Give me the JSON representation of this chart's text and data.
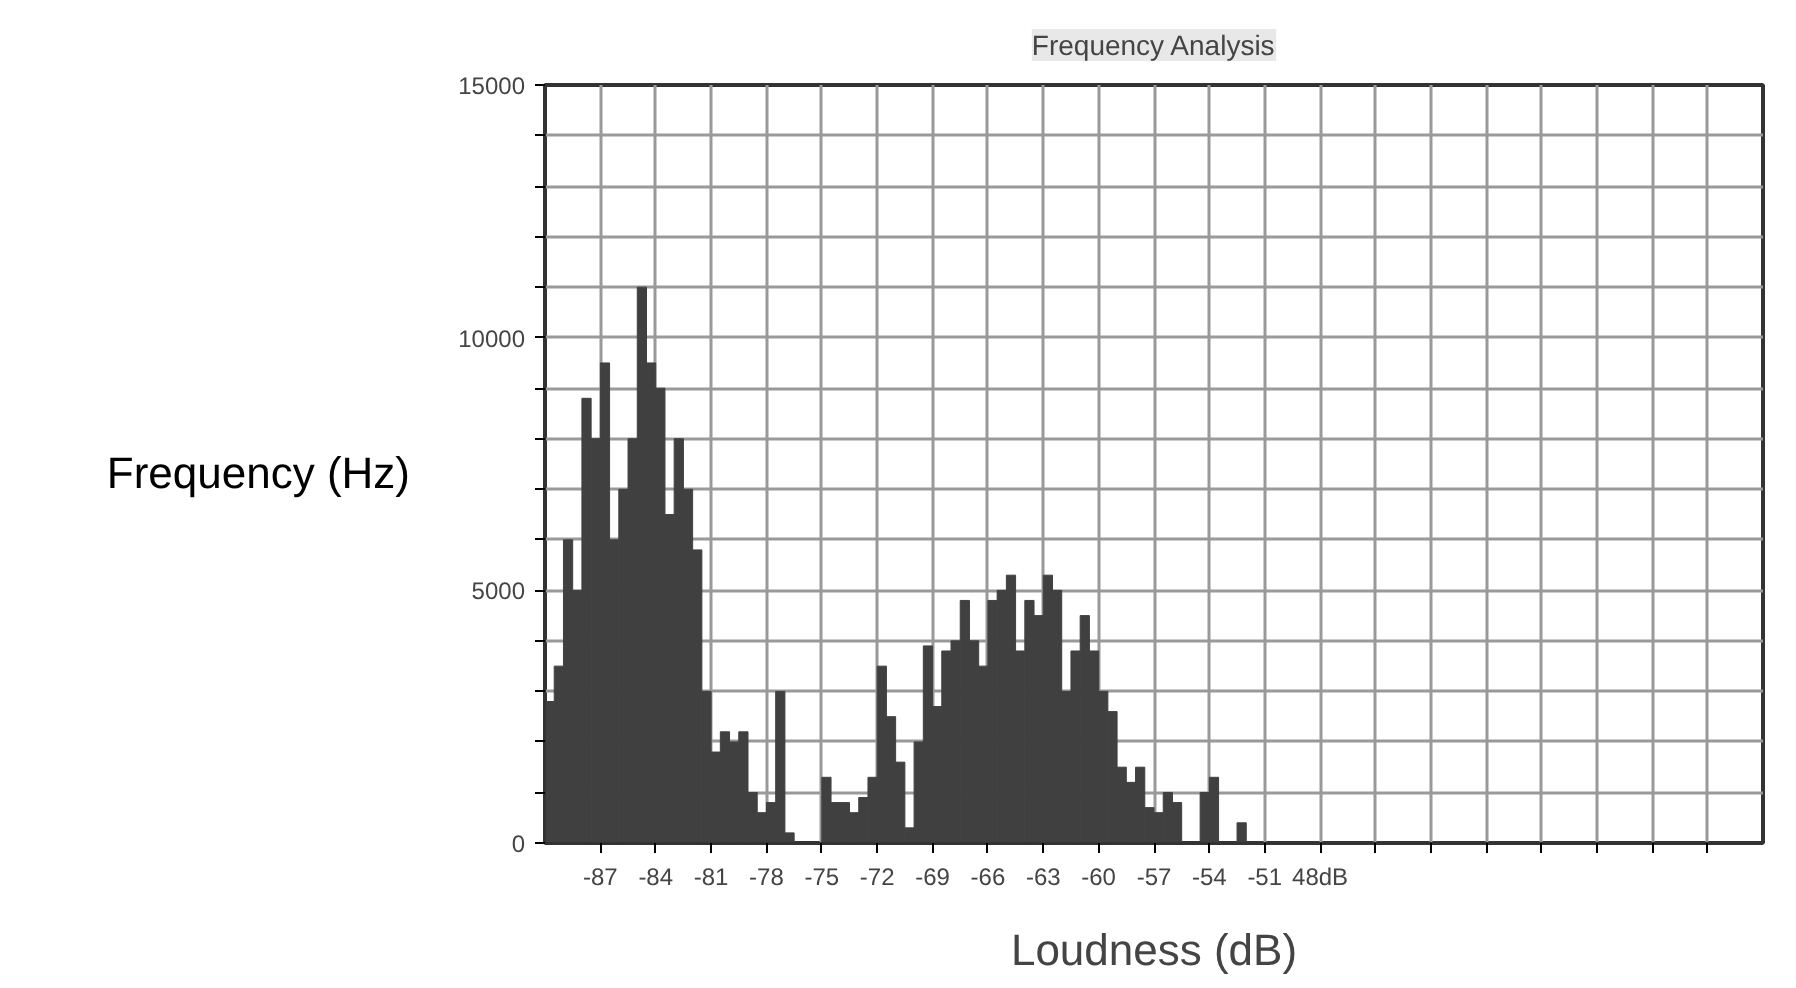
{
  "chart_data": {
    "type": "histogram",
    "title": "Frequency Analysis",
    "xlabel": "Loudness (dB)",
    "ylabel": "Frequency (Hz)",
    "bins": [
      -90,
      -89.5,
      -89,
      -88.5,
      -88,
      -87.5,
      -87,
      -86.5,
      -86,
      -85.5,
      -85,
      -84.5,
      -84,
      -83.5,
      -83,
      -82.5,
      -82,
      -81.5,
      -81,
      -80.5,
      -80,
      -79.5,
      -79,
      -78.5,
      -78,
      -77.5,
      -77,
      -76.5,
      -76,
      -75.5,
      -75,
      -74.5,
      -74,
      -73.5,
      -73,
      -72.5,
      -72,
      -71.5,
      -71,
      -70.5,
      -70,
      -69.5,
      -69,
      -68.5,
      -68,
      -67.5,
      -67,
      -66.5,
      -66,
      -65.5,
      -65,
      -64.5,
      -64,
      -63.5,
      -63,
      -62.5,
      -62,
      -61.5,
      -61,
      -60.5,
      -60,
      -59.5,
      -59,
      -58.5,
      -58,
      -57.5,
      -57,
      -56.5,
      -56,
      -55.5,
      -55,
      -54.5,
      -54,
      -53.5,
      -53,
      -52.5,
      -52
    ],
    "values": [
      2800,
      3500,
      6000,
      5000,
      8800,
      8000,
      9500,
      6000,
      7000,
      8000,
      11000,
      9500,
      9000,
      6500,
      8000,
      7000,
      5800,
      3000,
      1800,
      2200,
      2000,
      2200,
      1000,
      600,
      800,
      3000,
      200,
      0,
      0,
      0,
      1300,
      800,
      800,
      600,
      900,
      1300,
      3500,
      2500,
      1600,
      300,
      2000,
      3900,
      2700,
      3800,
      4000,
      4800,
      4000,
      3500,
      4800,
      5000,
      5300,
      3800,
      4800,
      4500,
      5300,
      5000,
      3000,
      3800,
      4500,
      3800,
      3000,
      2600,
      1500,
      1200,
      1500,
      700,
      600,
      1000,
      800,
      0,
      0,
      1000,
      1300,
      0,
      0,
      400
    ],
    "color": "#404040",
    "xlim": [
      -90,
      -24
    ],
    "ylim": [
      0,
      15000
    ],
    "xticks": [
      -87,
      -84,
      -81,
      -78,
      -75,
      -72,
      -69,
      -66,
      -63,
      -60,
      -57,
      -54,
      -51,
      {
        "value": -48,
        "label": "48dB"
      },
      {
        "value": -45,
        "label": null
      },
      {
        "value": -42,
        "label": null
      },
      {
        "value": -39,
        "label": null
      },
      {
        "value": -36,
        "label": null
      },
      {
        "value": -33,
        "label": null
      },
      {
        "value": -30,
        "label": null
      },
      {
        "value": -27,
        "label": null
      }
    ],
    "yticks": [
      0,
      {
        "value": 1000,
        "label": null
      },
      {
        "value": 2000,
        "label": null
      },
      {
        "value": 3000,
        "label": null
      },
      {
        "value": 4000,
        "label": null
      },
      5000,
      {
        "value": 6000,
        "label": null
      },
      {
        "value": 7000,
        "label": null
      },
      {
        "value": 8000,
        "label": null
      },
      {
        "value": 9000,
        "label": null
      },
      10000,
      {
        "value": 11000,
        "label": null
      },
      {
        "value": 12000,
        "label": null
      },
      {
        "value": 13000,
        "label": null
      },
      {
        "value": 14000,
        "label": null
      },
      15000
    ],
    "grid": true
  }
}
